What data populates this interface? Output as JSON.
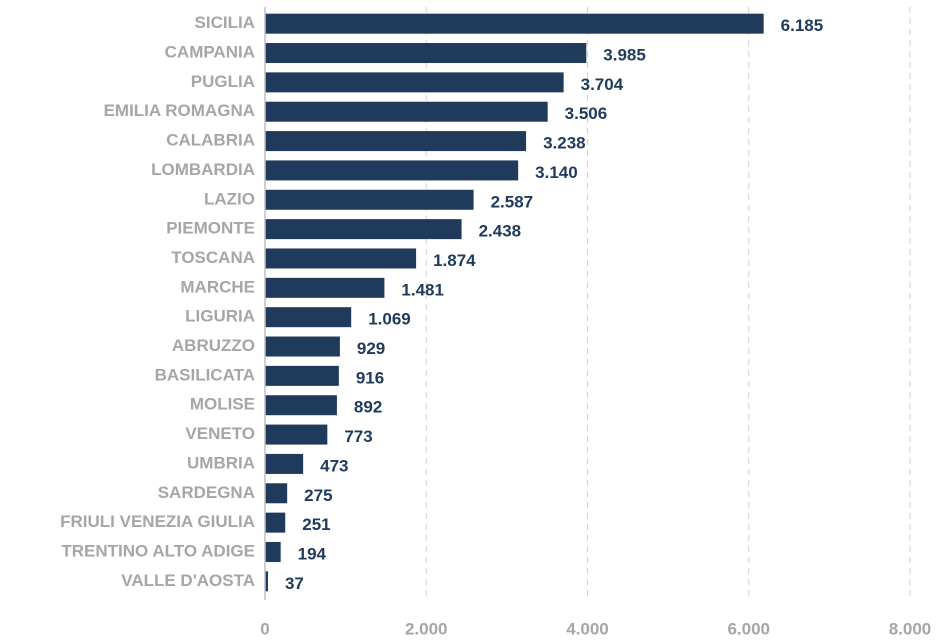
{
  "chart_data": {
    "type": "hbar",
    "categories": [
      "SICILIA",
      "CAMPANIA",
      "PUGLIA",
      "EMILIA ROMAGNA",
      "CALABRIA",
      "LOMBARDIA",
      "LAZIO",
      "PIEMONTE",
      "TOSCANA",
      "MARCHE",
      "LIGURIA",
      "ABRUZZO",
      "BASILICATA",
      "MOLISE",
      "VENETO",
      "UMBRIA",
      "SARDEGNA",
      "FRIULI VENEZIA GIULIA",
      "TRENTINO ALTO ADIGE",
      "VALLE D'AOSTA"
    ],
    "values": [
      6185,
      3985,
      3704,
      3506,
      3238,
      3140,
      2587,
      2438,
      1874,
      1481,
      1069,
      929,
      916,
      892,
      773,
      473,
      275,
      251,
      194,
      37
    ],
    "value_labels": [
      "6.185",
      "3.985",
      "3.704",
      "3.506",
      "3.238",
      "3.140",
      "2.587",
      "2.438",
      "1.874",
      "1.481",
      "1.069",
      "929",
      "916",
      "892",
      "773",
      "473",
      "275",
      "251",
      "194",
      "37"
    ],
    "color": "#203a5c",
    "xlim": [
      0,
      8000
    ],
    "xticks": [
      0,
      {
        "value": 2000,
        "label": "2.000"
      },
      {
        "value": 4000,
        "label": "4.000"
      },
      {
        "value": 6000,
        "label": "6.000"
      },
      {
        "value": 8000,
        "label": "8.000"
      }
    ],
    "grid": true
  }
}
